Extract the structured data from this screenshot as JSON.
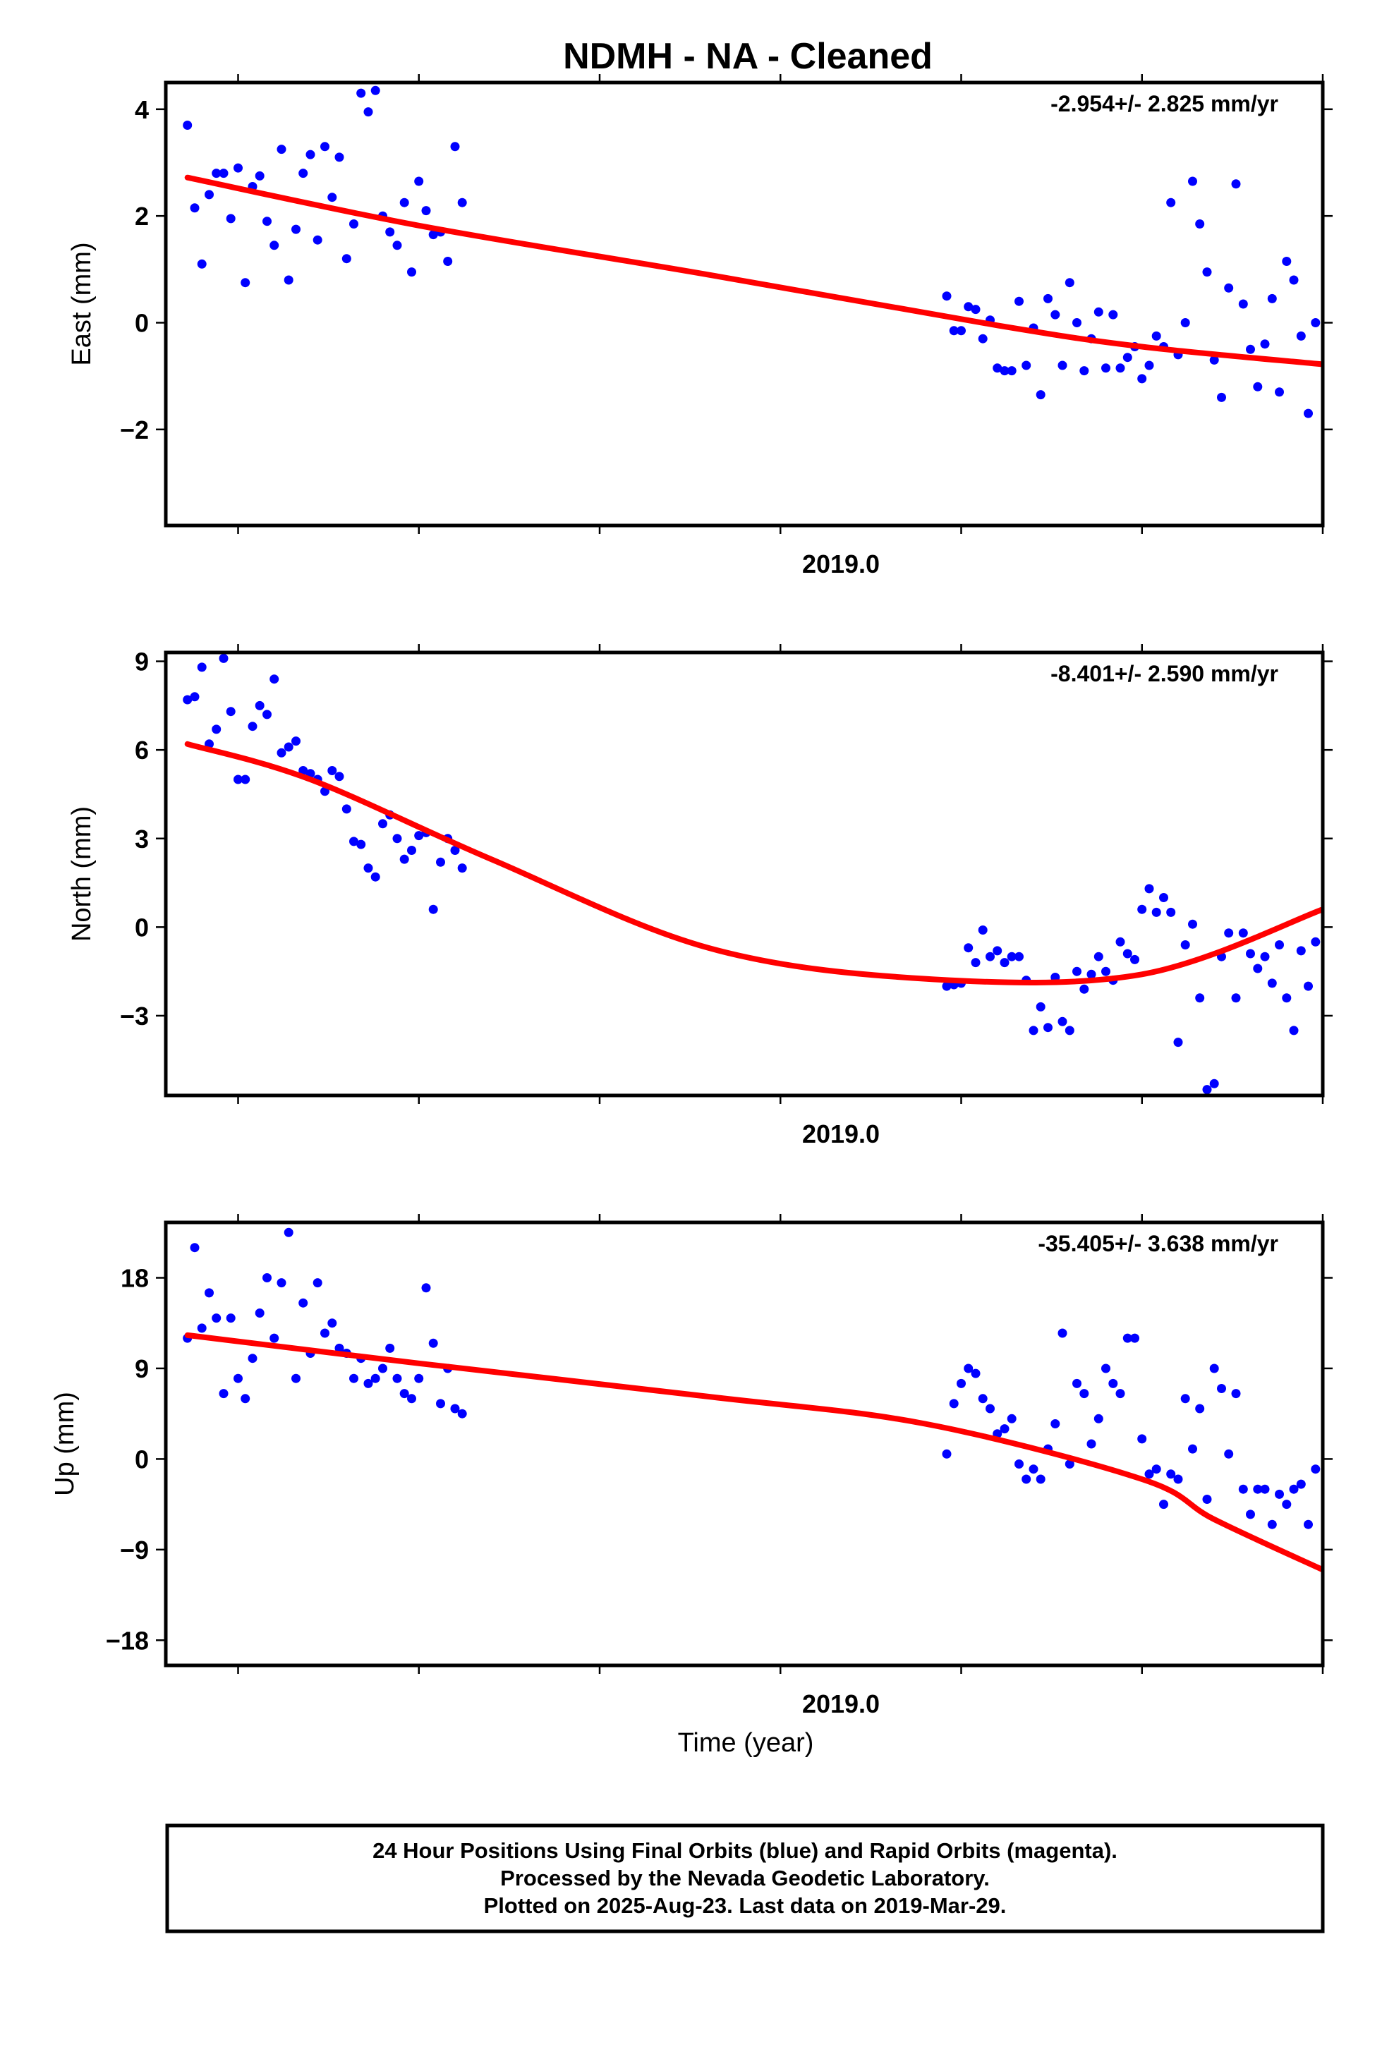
{
  "title": "NDMH  - NA - Cleaned",
  "xlabel": "Time (year)",
  "footer": {
    "line1": "24 Hour Positions Using Final Orbits (blue) and Rapid Orbits (magenta).",
    "line2": "Processed by the Nevada Geodetic Laboratory.",
    "line3": "Plotted on 2025-Aug-23. Last data on 2019-Mar-29."
  },
  "colors": {
    "points": "#0000ff",
    "fit": "#ff0000",
    "frame": "#000000"
  },
  "chart_data": [
    {
      "type": "scatter",
      "ylabel": "East (mm)",
      "rate_label": "-2.954+/- 2.825 mm/yr",
      "x_tick": "2019.0",
      "xlim": [
        2017.65,
        2019.25
      ],
      "ylim": [
        -3.8,
        4.5
      ],
      "yticks": [
        4,
        2,
        0,
        -2
      ],
      "ytick_labels": [
        "4",
        "2",
        "0",
        "−2"
      ],
      "points": [
        [
          2017.68,
          3.7
        ],
        [
          2017.69,
          2.15
        ],
        [
          2017.7,
          1.1
        ],
        [
          2017.71,
          2.4
        ],
        [
          2017.72,
          2.8
        ],
        [
          2017.73,
          2.8
        ],
        [
          2017.74,
          1.95
        ],
        [
          2017.75,
          2.9
        ],
        [
          2017.76,
          0.75
        ],
        [
          2017.77,
          2.55
        ],
        [
          2017.78,
          2.75
        ],
        [
          2017.79,
          1.9
        ],
        [
          2017.8,
          1.45
        ],
        [
          2017.81,
          3.25
        ],
        [
          2017.82,
          0.8
        ],
        [
          2017.83,
          1.75
        ],
        [
          2017.84,
          2.8
        ],
        [
          2017.85,
          3.15
        ],
        [
          2017.86,
          1.55
        ],
        [
          2017.87,
          3.3
        ],
        [
          2017.88,
          2.35
        ],
        [
          2017.89,
          3.1
        ],
        [
          2017.9,
          1.2
        ],
        [
          2017.91,
          1.85
        ],
        [
          2017.92,
          4.3
        ],
        [
          2017.93,
          3.95
        ],
        [
          2017.94,
          4.35
        ],
        [
          2017.95,
          2.0
        ],
        [
          2017.96,
          1.7
        ],
        [
          2017.97,
          1.45
        ],
        [
          2017.98,
          2.25
        ],
        [
          2017.99,
          0.95
        ],
        [
          2018.0,
          2.65
        ],
        [
          2018.01,
          2.1
        ],
        [
          2018.02,
          1.65
        ],
        [
          2018.03,
          1.7
        ],
        [
          2018.04,
          1.15
        ],
        [
          2018.05,
          3.3
        ],
        [
          2018.06,
          2.25
        ],
        [
          2018.73,
          0.5
        ],
        [
          2018.74,
          -0.15
        ],
        [
          2018.75,
          -0.15
        ],
        [
          2018.76,
          0.3
        ],
        [
          2018.77,
          0.25
        ],
        [
          2018.78,
          -0.3
        ],
        [
          2018.79,
          0.05
        ],
        [
          2018.8,
          -0.85
        ],
        [
          2018.81,
          -0.9
        ],
        [
          2018.82,
          -0.9
        ],
        [
          2018.83,
          0.4
        ],
        [
          2018.84,
          -0.8
        ],
        [
          2018.85,
          -0.1
        ],
        [
          2018.86,
          -1.35
        ],
        [
          2018.87,
          0.45
        ],
        [
          2018.88,
          0.15
        ],
        [
          2018.89,
          -0.8
        ],
        [
          2018.9,
          0.75
        ],
        [
          2018.91,
          0.0
        ],
        [
          2018.92,
          -0.9
        ],
        [
          2018.93,
          -0.3
        ],
        [
          2018.94,
          0.2
        ],
        [
          2018.95,
          -0.85
        ],
        [
          2018.96,
          0.15
        ],
        [
          2018.97,
          -0.85
        ],
        [
          2018.98,
          -0.65
        ],
        [
          2018.99,
          -0.45
        ],
        [
          2019.0,
          -1.05
        ],
        [
          2019.01,
          -0.8
        ],
        [
          2019.02,
          -0.25
        ],
        [
          2019.03,
          -0.45
        ],
        [
          2019.04,
          2.25
        ],
        [
          2019.05,
          -0.6
        ],
        [
          2019.06,
          0.0
        ],
        [
          2019.07,
          2.65
        ],
        [
          2019.08,
          1.85
        ],
        [
          2019.09,
          0.95
        ],
        [
          2019.1,
          -0.7
        ],
        [
          2019.11,
          -1.4
        ],
        [
          2019.12,
          0.65
        ],
        [
          2019.13,
          2.6
        ],
        [
          2019.14,
          0.35
        ],
        [
          2019.15,
          -0.5
        ],
        [
          2019.16,
          -1.2
        ],
        [
          2019.17,
          -0.4
        ],
        [
          2019.18,
          0.45
        ],
        [
          2019.19,
          -1.3
        ],
        [
          2019.2,
          1.15
        ],
        [
          2019.21,
          0.8
        ],
        [
          2019.22,
          -0.25
        ],
        [
          2019.23,
          -1.7
        ],
        [
          2019.24,
          0.0
        ]
      ],
      "fit": [
        [
          2017.68,
          2.72
        ],
        [
          2018.0,
          1.82
        ],
        [
          2018.4,
          0.9
        ],
        [
          2018.8,
          -0.05
        ],
        [
          2019.0,
          -0.45
        ],
        [
          2019.25,
          -0.78
        ]
      ]
    },
    {
      "type": "scatter",
      "ylabel": "North (mm)",
      "rate_label": "-8.401+/- 2.590 mm/yr",
      "x_tick": "2019.0",
      "xlim": [
        2017.65,
        2019.25
      ],
      "ylim": [
        -5.7,
        9.3
      ],
      "yticks": [
        9,
        6,
        3,
        0,
        -3
      ],
      "ytick_labels": [
        "9",
        "6",
        "3",
        "0",
        "−3"
      ],
      "points": [
        [
          2017.68,
          7.7
        ],
        [
          2017.69,
          7.8
        ],
        [
          2017.7,
          8.8
        ],
        [
          2017.71,
          6.2
        ],
        [
          2017.72,
          6.7
        ],
        [
          2017.73,
          9.1
        ],
        [
          2017.74,
          7.3
        ],
        [
          2017.75,
          5.0
        ],
        [
          2017.76,
          5.0
        ],
        [
          2017.77,
          6.8
        ],
        [
          2017.78,
          7.5
        ],
        [
          2017.79,
          7.2
        ],
        [
          2017.8,
          8.4
        ],
        [
          2017.81,
          5.9
        ],
        [
          2017.82,
          6.1
        ],
        [
          2017.83,
          6.3
        ],
        [
          2017.84,
          5.3
        ],
        [
          2017.85,
          5.2
        ],
        [
          2017.86,
          5.0
        ],
        [
          2017.87,
          4.6
        ],
        [
          2017.88,
          5.3
        ],
        [
          2017.89,
          5.1
        ],
        [
          2017.9,
          4.0
        ],
        [
          2017.91,
          2.9
        ],
        [
          2017.92,
          2.8
        ],
        [
          2017.93,
          2.0
        ],
        [
          2017.94,
          1.7
        ],
        [
          2017.95,
          3.5
        ],
        [
          2017.96,
          3.8
        ],
        [
          2017.97,
          3.0
        ],
        [
          2017.98,
          2.3
        ],
        [
          2017.99,
          2.6
        ],
        [
          2018.0,
          3.1
        ],
        [
          2018.01,
          3.2
        ],
        [
          2018.02,
          0.6
        ],
        [
          2018.03,
          2.2
        ],
        [
          2018.04,
          3.0
        ],
        [
          2018.05,
          2.6
        ],
        [
          2018.06,
          2.0
        ],
        [
          2018.73,
          -2.0
        ],
        [
          2018.74,
          -1.95
        ],
        [
          2018.75,
          -1.9
        ],
        [
          2018.76,
          -0.7
        ],
        [
          2018.77,
          -1.2
        ],
        [
          2018.78,
          -0.1
        ],
        [
          2018.79,
          -1.0
        ],
        [
          2018.8,
          -0.8
        ],
        [
          2018.81,
          -1.2
        ],
        [
          2018.82,
          -1.0
        ],
        [
          2018.83,
          -1.0
        ],
        [
          2018.84,
          -1.8
        ],
        [
          2018.85,
          -3.5
        ],
        [
          2018.86,
          -2.7
        ],
        [
          2018.87,
          -3.4
        ],
        [
          2018.88,
          -1.7
        ],
        [
          2018.89,
          -3.2
        ],
        [
          2018.9,
          -3.5
        ],
        [
          2018.91,
          -1.5
        ],
        [
          2018.92,
          -2.1
        ],
        [
          2018.93,
          -1.6
        ],
        [
          2018.94,
          -1.0
        ],
        [
          2018.95,
          -1.5
        ],
        [
          2018.96,
          -1.8
        ],
        [
          2018.97,
          -0.5
        ],
        [
          2018.98,
          -0.9
        ],
        [
          2018.99,
          -1.1
        ],
        [
          2019.0,
          0.6
        ],
        [
          2019.01,
          1.3
        ],
        [
          2019.02,
          0.5
        ],
        [
          2019.03,
          1.0
        ],
        [
          2019.04,
          0.5
        ],
        [
          2019.05,
          -3.9
        ],
        [
          2019.06,
          -0.6
        ],
        [
          2019.07,
          0.1
        ],
        [
          2019.08,
          -2.4
        ],
        [
          2019.09,
          -5.5
        ],
        [
          2019.1,
          -5.3
        ],
        [
          2019.11,
          -1.0
        ],
        [
          2019.12,
          -0.2
        ],
        [
          2019.13,
          -2.4
        ],
        [
          2019.14,
          -0.2
        ],
        [
          2019.15,
          -0.9
        ],
        [
          2019.16,
          -1.4
        ],
        [
          2019.17,
          -1.0
        ],
        [
          2019.18,
          -1.9
        ],
        [
          2019.19,
          -0.6
        ],
        [
          2019.2,
          -2.4
        ],
        [
          2019.21,
          -3.5
        ],
        [
          2019.22,
          -0.8
        ],
        [
          2019.23,
          -2.0
        ],
        [
          2019.24,
          -0.5
        ]
      ],
      "fit": [
        [
          2017.68,
          6.2
        ],
        [
          2017.85,
          5.0
        ],
        [
          2018.1,
          2.3
        ],
        [
          2018.4,
          -0.7
        ],
        [
          2018.7,
          -1.75
        ],
        [
          2019.0,
          -1.6
        ],
        [
          2019.25,
          0.6
        ]
      ]
    },
    {
      "type": "scatter",
      "ylabel": "Up (mm)",
      "rate_label": "-35.405+/- 3.638 mm/yr",
      "x_tick": "2019.0",
      "xlim": [
        2017.65,
        2019.25
      ],
      "ylim": [
        -20.5,
        23.5
      ],
      "yticks": [
        18,
        9,
        0,
        -9,
        -18
      ],
      "ytick_labels": [
        "18",
        "9",
        "0",
        "−9",
        "−18"
      ],
      "points": [
        [
          2017.68,
          12.0
        ],
        [
          2017.69,
          21.0
        ],
        [
          2017.7,
          13.0
        ],
        [
          2017.71,
          16.5
        ],
        [
          2017.72,
          14.0
        ],
        [
          2017.73,
          6.5
        ],
        [
          2017.74,
          14.0
        ],
        [
          2017.75,
          8.0
        ],
        [
          2017.76,
          6.0
        ],
        [
          2017.77,
          10.0
        ],
        [
          2017.78,
          14.5
        ],
        [
          2017.79,
          18.0
        ],
        [
          2017.8,
          12.0
        ],
        [
          2017.81,
          17.5
        ],
        [
          2017.82,
          22.5
        ],
        [
          2017.83,
          8.0
        ],
        [
          2017.84,
          15.5
        ],
        [
          2017.85,
          10.5
        ],
        [
          2017.86,
          17.5
        ],
        [
          2017.87,
          12.5
        ],
        [
          2017.88,
          13.5
        ],
        [
          2017.89,
          11.0
        ],
        [
          2017.9,
          10.5
        ],
        [
          2017.91,
          8.0
        ],
        [
          2017.92,
          10.0
        ],
        [
          2017.93,
          7.5
        ],
        [
          2017.94,
          8.0
        ],
        [
          2017.95,
          9.0
        ],
        [
          2017.96,
          11.0
        ],
        [
          2017.97,
          8.0
        ],
        [
          2017.98,
          6.5
        ],
        [
          2017.99,
          6.0
        ],
        [
          2018.0,
          8.0
        ],
        [
          2018.01,
          17.0
        ],
        [
          2018.02,
          11.5
        ],
        [
          2018.03,
          5.5
        ],
        [
          2018.04,
          9.0
        ],
        [
          2018.05,
          5.0
        ],
        [
          2018.06,
          4.5
        ],
        [
          2018.73,
          0.5
        ],
        [
          2018.74,
          5.5
        ],
        [
          2018.75,
          7.5
        ],
        [
          2018.76,
          9.0
        ],
        [
          2018.77,
          8.5
        ],
        [
          2018.78,
          6.0
        ],
        [
          2018.79,
          5.0
        ],
        [
          2018.8,
          2.5
        ],
        [
          2018.81,
          3.0
        ],
        [
          2018.82,
          4.0
        ],
        [
          2018.83,
          -0.5
        ],
        [
          2018.84,
          -2.0
        ],
        [
          2018.85,
          -1.0
        ],
        [
          2018.86,
          -2.0
        ],
        [
          2018.87,
          1.0
        ],
        [
          2018.88,
          3.5
        ],
        [
          2018.89,
          12.5
        ],
        [
          2018.9,
          -0.5
        ],
        [
          2018.91,
          7.5
        ],
        [
          2018.92,
          6.5
        ],
        [
          2018.93,
          1.5
        ],
        [
          2018.94,
          4.0
        ],
        [
          2018.95,
          9.0
        ],
        [
          2018.96,
          7.5
        ],
        [
          2018.97,
          6.5
        ],
        [
          2018.98,
          12.0
        ],
        [
          2018.99,
          12.0
        ],
        [
          2019.0,
          2.0
        ],
        [
          2019.01,
          -1.5
        ],
        [
          2019.02,
          -1.0
        ],
        [
          2019.03,
          -4.5
        ],
        [
          2019.04,
          -1.5
        ],
        [
          2019.05,
          -2.0
        ],
        [
          2019.06,
          6.0
        ],
        [
          2019.07,
          1.0
        ],
        [
          2019.08,
          5.0
        ],
        [
          2019.09,
          -4.0
        ],
        [
          2019.1,
          9.0
        ],
        [
          2019.11,
          7.0
        ],
        [
          2019.12,
          0.5
        ],
        [
          2019.13,
          6.5
        ],
        [
          2019.14,
          -3.0
        ],
        [
          2019.15,
          -5.5
        ],
        [
          2019.16,
          -3.0
        ],
        [
          2019.17,
          -3.0
        ],
        [
          2019.18,
          -6.5
        ],
        [
          2019.19,
          -3.5
        ],
        [
          2019.2,
          -4.5
        ],
        [
          2019.21,
          -3.0
        ],
        [
          2019.22,
          -2.5
        ],
        [
          2019.23,
          -6.5
        ],
        [
          2019.24,
          -1.0
        ]
      ],
      "fit": [
        [
          2017.68,
          12.3
        ],
        [
          2018.0,
          9.5
        ],
        [
          2018.4,
          6.2
        ],
        [
          2018.7,
          3.5
        ],
        [
          2019.0,
          -2.0
        ],
        [
          2019.1,
          -6.0
        ],
        [
          2019.25,
          -11.0
        ]
      ]
    }
  ]
}
